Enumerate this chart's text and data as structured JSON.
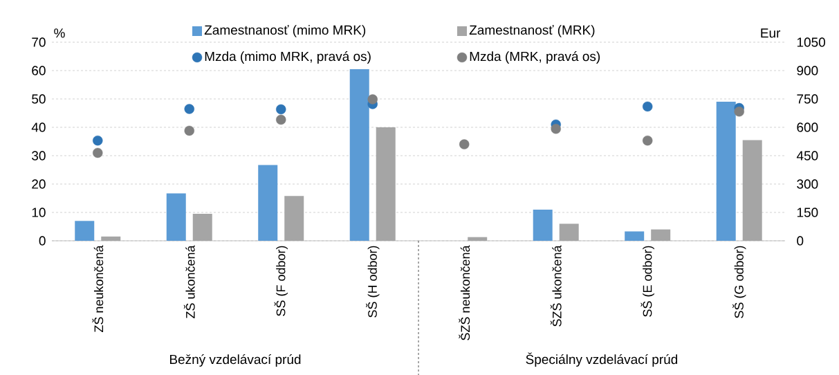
{
  "chart_data": {
    "type": "bar",
    "ylabel": "%",
    "y2label": "Eur",
    "categories": [
      "ZŠ neukončená",
      "ZŠ ukončená",
      "SŠ (F odbor)",
      "SŠ (H odbor)",
      "ŠZŠ neukončená",
      "ŠZŠ ukončená",
      "SŠ (E odbor)",
      "SŠ (G odbor)"
    ],
    "series": [
      {
        "name": "Zamestnanosť (mimo MRK)",
        "color": "#5b9bd5",
        "values": [
          7,
          16.7,
          26.7,
          60.5,
          null,
          11,
          3.3,
          49
        ]
      },
      {
        "name": "Zamestnanosť (MRK)",
        "color": "#a5a5a5",
        "values": [
          1.5,
          9.5,
          15.8,
          40,
          1.3,
          6,
          4,
          35.5
        ]
      },
      {
        "name": "Mzda (mimo MRK, pravá os)",
        "type": "scatter",
        "axis": "y2",
        "marker": "circle",
        "color": "#2e75b6",
        "values": [
          530,
          697,
          695,
          723,
          null,
          615,
          710,
          702
        ]
      },
      {
        "name": "Mzda (MRK, pravá os)",
        "type": "scatter",
        "axis": "y2",
        "marker": "circle",
        "color": "#7f7f7f",
        "values": [
          465,
          582,
          640,
          748,
          510,
          592,
          530,
          683
        ]
      }
    ],
    "ylim": [
      0,
      70
    ],
    "yticks": [
      0,
      10,
      20,
      30,
      40,
      50,
      60,
      70
    ],
    "y2lim": [
      0,
      1050
    ],
    "y2ticks": [
      0,
      150,
      300,
      450,
      600,
      750,
      900,
      1050
    ],
    "grid": "y",
    "legend": "top",
    "annotations": [
      "Bežný vzdelávací prúd",
      "Špeciálny vzdelávací prúd"
    ]
  }
}
